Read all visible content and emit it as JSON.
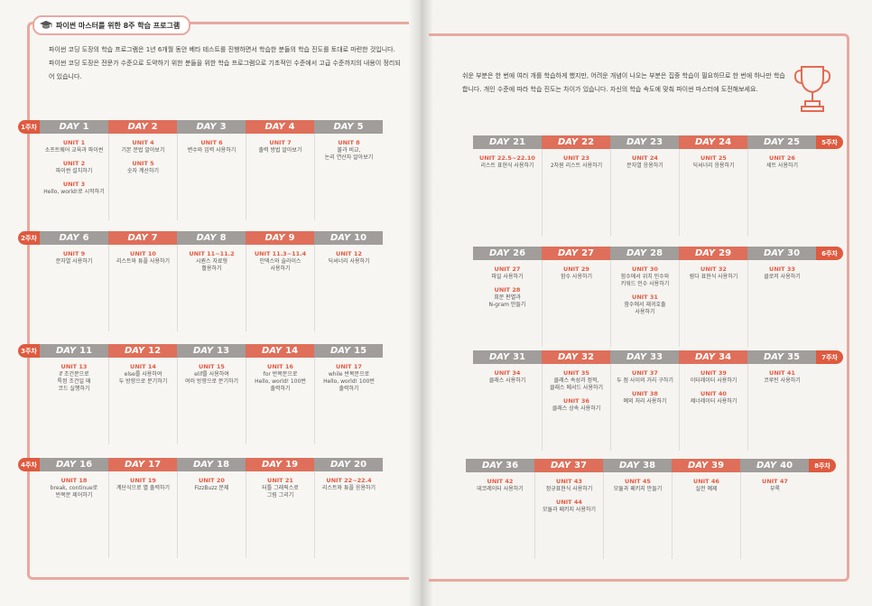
{
  "header_title": "파이썬 마스터를 위한 8주 학습 프로그램",
  "intro_left": "파이썬 코딩 도장의 학습 프로그램은 1년 6개월 동안 베타 테스트를 진행하면서 학습한 분들의 학습 진도를 토대로 마련한 것입니다. 파이썬 코딩 도장은 전문가 수준으로 도약하기 위한 분들을 위한 학습 프로그램으로 기초적인 수준에서 고급 수준까지의 내용이 정리되어 있습니다.",
  "intro_right": "쉬운 부분은 한 번에 여러 개를 학습하게 했지만, 어려운 개념이 나오는 부분은 집중 학습이 필요하므로 한 번에 하나만 학습합니다. 개인 수준에 따라 학습 진도는 차이가 있습니다. 자신의 학습 속도에 맞춰 파이썬 마스터에 도전해보세요.",
  "day_label": "DAY",
  "weeks": [
    {
      "tag": "1주차",
      "days": [
        {
          "n": "1",
          "units": [
            {
              "t": "UNIT 1",
              "d": "소프트웨어 교육과 파이썬"
            },
            {
              "t": "UNIT 2",
              "d": "파이썬 설치하기"
            },
            {
              "t": "UNIT 3",
              "d": "Hello, world!로 시작하기"
            }
          ]
        },
        {
          "n": "2",
          "units": [
            {
              "t": "UNIT 4",
              "d": "기본 문법 알아보기"
            },
            {
              "t": "UNIT 5",
              "d": "숫자 계산하기"
            }
          ]
        },
        {
          "n": "3",
          "units": [
            {
              "t": "UNIT 6",
              "d": "변수와 입력 사용하기"
            }
          ]
        },
        {
          "n": "4",
          "units": [
            {
              "t": "UNIT 7",
              "d": "출력 방법 알아보기"
            }
          ]
        },
        {
          "n": "5",
          "units": [
            {
              "t": "UNIT 8",
              "d": "불과 비교,\n논리 연산자 알아보기"
            }
          ]
        }
      ]
    },
    {
      "tag": "2주차",
      "days": [
        {
          "n": "6",
          "units": [
            {
              "t": "UNIT 9",
              "d": "문자열 사용하기"
            }
          ]
        },
        {
          "n": "7",
          "units": [
            {
              "t": "UNIT 10",
              "d": "리스트와 튜플 사용하기"
            }
          ]
        },
        {
          "n": "8",
          "units": [
            {
              "t": "UNIT 11~11.2",
              "d": "시퀀스 자료형\n활용하기"
            }
          ]
        },
        {
          "n": "9",
          "units": [
            {
              "t": "UNIT 11.3~11.4",
              "d": "인덱스와 슬라이스\n사용하기"
            }
          ]
        },
        {
          "n": "10",
          "units": [
            {
              "t": "UNIT 12",
              "d": "딕셔너리 사용하기"
            }
          ]
        }
      ]
    },
    {
      "tag": "3주차",
      "days": [
        {
          "n": "11",
          "units": [
            {
              "t": "UNIT 13",
              "d": "if 조건문으로\n특정 조건일 때\n코드 실행하기"
            }
          ]
        },
        {
          "n": "12",
          "units": [
            {
              "t": "UNIT 14",
              "d": "else를 사용하여\n두 방향으로 분기하기"
            }
          ]
        },
        {
          "n": "13",
          "units": [
            {
              "t": "UNIT 15",
              "d": "elif를 사용하여\n여러 방향으로 분기하기"
            }
          ]
        },
        {
          "n": "14",
          "units": [
            {
              "t": "UNIT 16",
              "d": "for 반복문으로\nHello, world! 100번\n출력하기"
            }
          ]
        },
        {
          "n": "15",
          "units": [
            {
              "t": "UNIT 17",
              "d": "while 반복문으로\nHello, world! 100번\n출력하기"
            }
          ]
        }
      ]
    },
    {
      "tag": "4주차",
      "days": [
        {
          "n": "16",
          "units": [
            {
              "t": "UNIT 18",
              "d": "break, continue로\n반복문 제어하기"
            }
          ]
        },
        {
          "n": "17",
          "units": [
            {
              "t": "UNIT 19",
              "d": "계단식으로 별 출력하기"
            }
          ]
        },
        {
          "n": "18",
          "units": [
            {
              "t": "UNIT 20",
              "d": "FizzBuzz 문제"
            }
          ]
        },
        {
          "n": "19",
          "units": [
            {
              "t": "UNIT 21",
              "d": "터틀 그래픽스로\n그림 그리기"
            }
          ]
        },
        {
          "n": "20",
          "units": [
            {
              "t": "UNIT 22~22.4",
              "d": "리스트와 튜플 응용하기"
            }
          ]
        }
      ]
    },
    {
      "tag": "5주차",
      "days": [
        {
          "n": "21",
          "units": [
            {
              "t": "UNIT 22.5~22.10",
              "d": "리스트 표현식 사용하기"
            }
          ]
        },
        {
          "n": "22",
          "units": [
            {
              "t": "UNIT 23",
              "d": "2차원 리스트 사용하기"
            }
          ]
        },
        {
          "n": "23",
          "units": [
            {
              "t": "UNIT 24",
              "d": "문자열 응용하기"
            }
          ]
        },
        {
          "n": "24",
          "units": [
            {
              "t": "UNIT 25",
              "d": "딕셔너리 응용하기"
            }
          ]
        },
        {
          "n": "25",
          "units": [
            {
              "t": "UNIT 26",
              "d": "세트 사용하기"
            }
          ]
        }
      ]
    },
    {
      "tag": "6주차",
      "days": [
        {
          "n": "26",
          "units": [
            {
              "t": "UNIT 27",
              "d": "파일 사용하기"
            },
            {
              "t": "UNIT 28",
              "d": "회문 판별과\nN-gram 만들기"
            }
          ]
        },
        {
          "n": "27",
          "units": [
            {
              "t": "UNIT 29",
              "d": "함수 사용하기"
            }
          ]
        },
        {
          "n": "28",
          "units": [
            {
              "t": "UNIT 30",
              "d": "함수에서 위치 인수와\n키워드 인수 사용하기"
            },
            {
              "t": "UNIT 31",
              "d": "함수에서 재귀호출\n사용하기"
            }
          ]
        },
        {
          "n": "29",
          "units": [
            {
              "t": "UNIT 32",
              "d": "람다 표현식 사용하기"
            }
          ]
        },
        {
          "n": "30",
          "units": [
            {
              "t": "UNIT 33",
              "d": "클로저 사용하기"
            }
          ]
        }
      ]
    },
    {
      "tag": "7주차",
      "days": [
        {
          "n": "31",
          "units": [
            {
              "t": "UNIT 34",
              "d": "클래스 사용하기"
            }
          ]
        },
        {
          "n": "32",
          "units": [
            {
              "t": "UNIT 35",
              "d": "클래스 속성과 정적,\n클래스 메서드 사용하기"
            },
            {
              "t": "UNIT 36",
              "d": "클래스 상속 사용하기"
            }
          ]
        },
        {
          "n": "33",
          "units": [
            {
              "t": "UNIT 37",
              "d": "두 점 사이의 거리 구하기"
            },
            {
              "t": "UNIT 38",
              "d": "예외 처리 사용하기"
            }
          ]
        },
        {
          "n": "34",
          "units": [
            {
              "t": "UNIT 39",
              "d": "이터레이터 사용하기"
            },
            {
              "t": "UNIT 40",
              "d": "제너레이터 사용하기"
            }
          ]
        },
        {
          "n": "35",
          "units": [
            {
              "t": "UNIT 41",
              "d": "코루틴 사용하기"
            }
          ]
        }
      ]
    },
    {
      "tag": "8주차",
      "days": [
        {
          "n": "36",
          "units": [
            {
              "t": "UNIT 42",
              "d": "데코레이터 사용하기"
            }
          ]
        },
        {
          "n": "37",
          "units": [
            {
              "t": "UNIT 43",
              "d": "정규표현식 사용하기"
            },
            {
              "t": "UNIT 44",
              "d": "모듈과 패키지 사용하기"
            }
          ]
        },
        {
          "n": "38",
          "units": [
            {
              "t": "UNIT 45",
              "d": "모듈과 패키지 만들기"
            }
          ]
        },
        {
          "n": "39",
          "units": [
            {
              "t": "UNIT 46",
              "d": "실전 예제"
            }
          ]
        },
        {
          "n": "40",
          "units": [
            {
              "t": "UNIT 47",
              "d": "부록"
            }
          ]
        }
      ]
    }
  ]
}
